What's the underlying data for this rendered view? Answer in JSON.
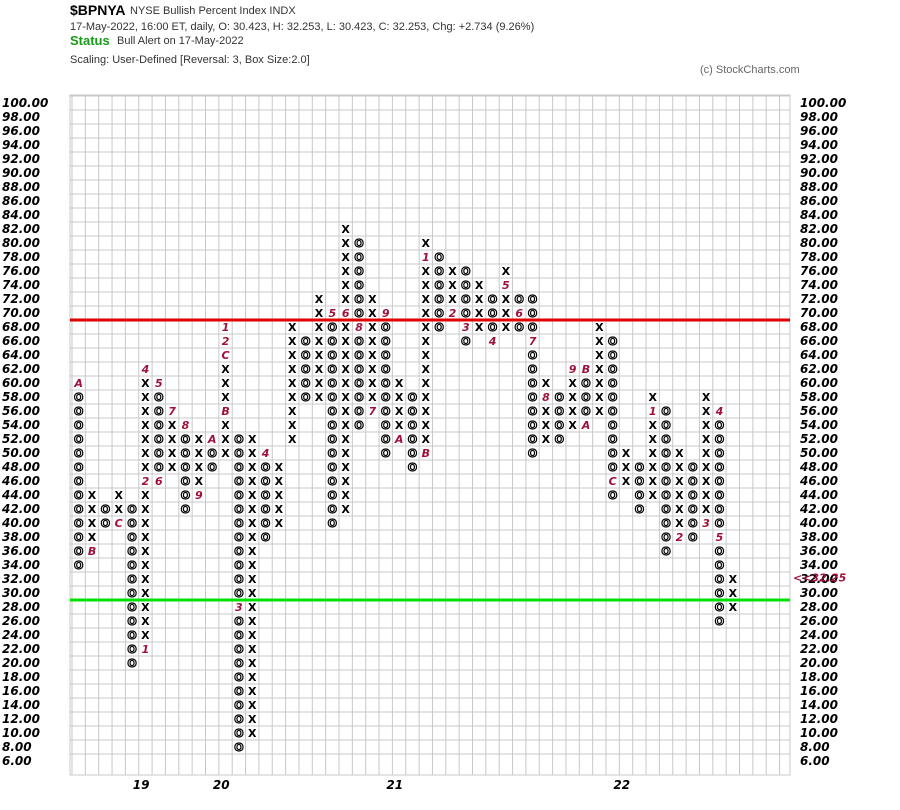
{
  "header": {
    "symbol": "$BPNYA",
    "name": "NYSE Bullish Percent Index  INDX",
    "ohlc": "17-May-2022, 16:00 ET, daily, O: 30.423, H: 32.253, L: 30.423, C: 32.253, Chg: +2.734 (9.26%)",
    "status_label": "Status",
    "status_value": "Bull Alert on 17-May-2022",
    "scaling": "Scaling: User-Defined [Reversal: 3, Box Size:2.0]",
    "copyright": "(c) StockCharts.com"
  },
  "colors": {
    "grid": "#c8c8c8",
    "resistance": "#e00000",
    "support": "#00e000",
    "month_marker": "#a0113a",
    "current_x": "#1aa01a",
    "current_price": "#c0103a"
  },
  "chart_data": {
    "type": "point-and-figure",
    "box_size": 2.0,
    "reversal": 3,
    "ylim": [
      6,
      100
    ],
    "y_ticks": [
      "100.00",
      "98.00",
      "96.00",
      "94.00",
      "92.00",
      "90.00",
      "88.00",
      "86.00",
      "84.00",
      "82.00",
      "80.00",
      "78.00",
      "76.00",
      "74.00",
      "72.00",
      "70.00",
      "68.00",
      "66.00",
      "64.00",
      "62.00",
      "60.00",
      "58.00",
      "56.00",
      "54.00",
      "52.00",
      "50.00",
      "48.00",
      "46.00",
      "44.00",
      "42.00",
      "40.00",
      "38.00",
      "36.00",
      "34.00",
      "32.00",
      "30.00",
      "28.00",
      "26.00",
      "24.00",
      "22.00",
      "20.00",
      "18.00",
      "16.00",
      "14.00",
      "12.00",
      "10.00",
      "8.00",
      "6.00"
    ],
    "x_labels": [
      {
        "label": "19",
        "col": 5
      },
      {
        "label": "20",
        "col": 11
      },
      {
        "label": "21",
        "col": 24
      },
      {
        "label": "22",
        "col": 41
      }
    ],
    "reference_lines": [
      {
        "value": 69,
        "color": "resistance"
      },
      {
        "value": 29,
        "color": "support"
      }
    ],
    "current_price_label": "<<32.25",
    "current_price_value": 32.25,
    "highlight_left_label": "32.00",
    "columns": [
      {
        "type": "O",
        "from": 34,
        "to": 60,
        "marks": [
          {
            "v": 60,
            "m": "A"
          }
        ]
      },
      {
        "type": "X",
        "from": 36,
        "to": 44,
        "marks": [
          {
            "v": 36,
            "m": "B"
          }
        ]
      },
      {
        "type": "O",
        "from": 40,
        "to": 42,
        "marks": []
      },
      {
        "type": "X",
        "from": 42,
        "to": 44,
        "marks": [
          {
            "v": 40,
            "m": "C"
          }
        ]
      },
      {
        "type": "O",
        "from": 20,
        "to": 42,
        "marks": []
      },
      {
        "type": "X",
        "from": 22,
        "to": 62,
        "marks": [
          {
            "v": 22,
            "m": "1"
          },
          {
            "v": 46,
            "m": "2"
          },
          {
            "v": 62,
            "m": "4"
          }
        ]
      },
      {
        "type": "O",
        "from": 46,
        "to": 60,
        "marks": [
          {
            "v": 46,
            "m": "6"
          },
          {
            "v": 60,
            "m": "5"
          }
        ]
      },
      {
        "type": "X",
        "from": 48,
        "to": 56,
        "marks": [
          {
            "v": 56,
            "m": "7"
          }
        ]
      },
      {
        "type": "O",
        "from": 42,
        "to": 54,
        "marks": [
          {
            "v": 54,
            "m": "8"
          }
        ]
      },
      {
        "type": "X",
        "from": 44,
        "to": 52,
        "marks": [
          {
            "v": 44,
            "m": "9"
          }
        ]
      },
      {
        "type": "O",
        "from": 48,
        "to": 50,
        "marks": [
          {
            "v": 52,
            "m": "A"
          }
        ]
      },
      {
        "type": "X",
        "from": 50,
        "to": 68,
        "marks": [
          {
            "v": 56,
            "m": "B"
          },
          {
            "v": 64,
            "m": "C"
          },
          {
            "v": 66,
            "m": "2"
          },
          {
            "v": 68,
            "m": "1"
          }
        ]
      },
      {
        "type": "O",
        "from": 8,
        "to": 52,
        "marks": [
          {
            "v": 28,
            "m": "3"
          }
        ]
      },
      {
        "type": "X",
        "from": 10,
        "to": 52,
        "marks": []
      },
      {
        "type": "O",
        "from": 38,
        "to": 50,
        "marks": [
          {
            "v": 50,
            "m": "4"
          }
        ]
      },
      {
        "type": "X",
        "from": 40,
        "to": 48,
        "marks": []
      },
      {
        "type": "X",
        "from": 52,
        "to": 68,
        "marks": []
      },
      {
        "type": "O",
        "from": 58,
        "to": 66,
        "marks": []
      },
      {
        "type": "X",
        "from": 58,
        "to": 72,
        "marks": []
      },
      {
        "type": "O",
        "from": 40,
        "to": 70,
        "marks": [
          {
            "v": 70,
            "m": "5"
          }
        ]
      },
      {
        "type": "X",
        "from": 42,
        "to": 82,
        "marks": [
          {
            "v": 70,
            "m": "6"
          }
        ]
      },
      {
        "type": "O",
        "from": 54,
        "to": 80,
        "marks": [
          {
            "v": 68,
            "m": "8"
          }
        ]
      },
      {
        "type": "X",
        "from": 56,
        "to": 72,
        "marks": [
          {
            "v": 56,
            "m": "7"
          }
        ]
      },
      {
        "type": "O",
        "from": 50,
        "to": 70,
        "marks": [
          {
            "v": 70,
            "m": "9"
          }
        ]
      },
      {
        "type": "X",
        "from": 52,
        "to": 60,
        "marks": [
          {
            "v": 52,
            "m": "A"
          }
        ]
      },
      {
        "type": "O",
        "from": 48,
        "to": 58,
        "marks": []
      },
      {
        "type": "X",
        "from": 50,
        "to": 80,
        "marks": [
          {
            "v": 50,
            "m": "B"
          },
          {
            "v": 78,
            "m": "1"
          }
        ]
      },
      {
        "type": "O",
        "from": 68,
        "to": 78,
        "marks": []
      },
      {
        "type": "X",
        "from": 70,
        "to": 76,
        "marks": [
          {
            "v": 70,
            "m": "2"
          }
        ]
      },
      {
        "type": "O",
        "from": 66,
        "to": 76,
        "marks": [
          {
            "v": 68,
            "m": "3"
          }
        ]
      },
      {
        "type": "X",
        "from": 68,
        "to": 74,
        "marks": []
      },
      {
        "type": "O",
        "from": 66,
        "to": 72,
        "marks": [
          {
            "v": 66,
            "m": "4"
          }
        ]
      },
      {
        "type": "X",
        "from": 68,
        "to": 76,
        "marks": [
          {
            "v": 74,
            "m": "5"
          }
        ]
      },
      {
        "type": "O",
        "from": 68,
        "to": 72,
        "marks": [
          {
            "v": 70,
            "m": "6"
          }
        ]
      },
      {
        "type": "O",
        "from": 50,
        "to": 72,
        "marks": [
          {
            "v": 66,
            "m": "7"
          }
        ]
      },
      {
        "type": "X",
        "from": 52,
        "to": 60,
        "marks": [
          {
            "v": 58,
            "m": "8"
          }
        ]
      },
      {
        "type": "O",
        "from": 52,
        "to": 58,
        "marks": []
      },
      {
        "type": "X",
        "from": 54,
        "to": 62,
        "marks": [
          {
            "v": 62,
            "m": "9"
          }
        ]
      },
      {
        "type": "O",
        "from": 54,
        "to": 60,
        "marks": [
          {
            "v": 62,
            "m": "B"
          },
          {
            "v": 54,
            "m": "A"
          }
        ]
      },
      {
        "type": "X",
        "from": 56,
        "to": 68,
        "marks": []
      },
      {
        "type": "O",
        "from": 44,
        "to": 66,
        "marks": [
          {
            "v": 46,
            "m": "C"
          }
        ]
      },
      {
        "type": "X",
        "from": 46,
        "to": 50,
        "marks": []
      },
      {
        "type": "O",
        "from": 42,
        "to": 48,
        "marks": []
      },
      {
        "type": "X",
        "from": 44,
        "to": 58,
        "marks": [
          {
            "v": 56,
            "m": "1"
          }
        ]
      },
      {
        "type": "O",
        "from": 36,
        "to": 56,
        "marks": []
      },
      {
        "type": "X",
        "from": 38,
        "to": 50,
        "marks": [
          {
            "v": 38,
            "m": "2"
          }
        ]
      },
      {
        "type": "O",
        "from": 38,
        "to": 48,
        "marks": []
      },
      {
        "type": "X",
        "from": 40,
        "to": 58,
        "marks": [
          {
            "v": 40,
            "m": "3"
          }
        ]
      },
      {
        "type": "O",
        "from": 26,
        "to": 56,
        "marks": [
          {
            "v": 56,
            "m": "4"
          },
          {
            "v": 38,
            "m": "5"
          }
        ]
      },
      {
        "type": "X",
        "from": 28,
        "to": 32,
        "marks": [],
        "current": true
      }
    ]
  }
}
